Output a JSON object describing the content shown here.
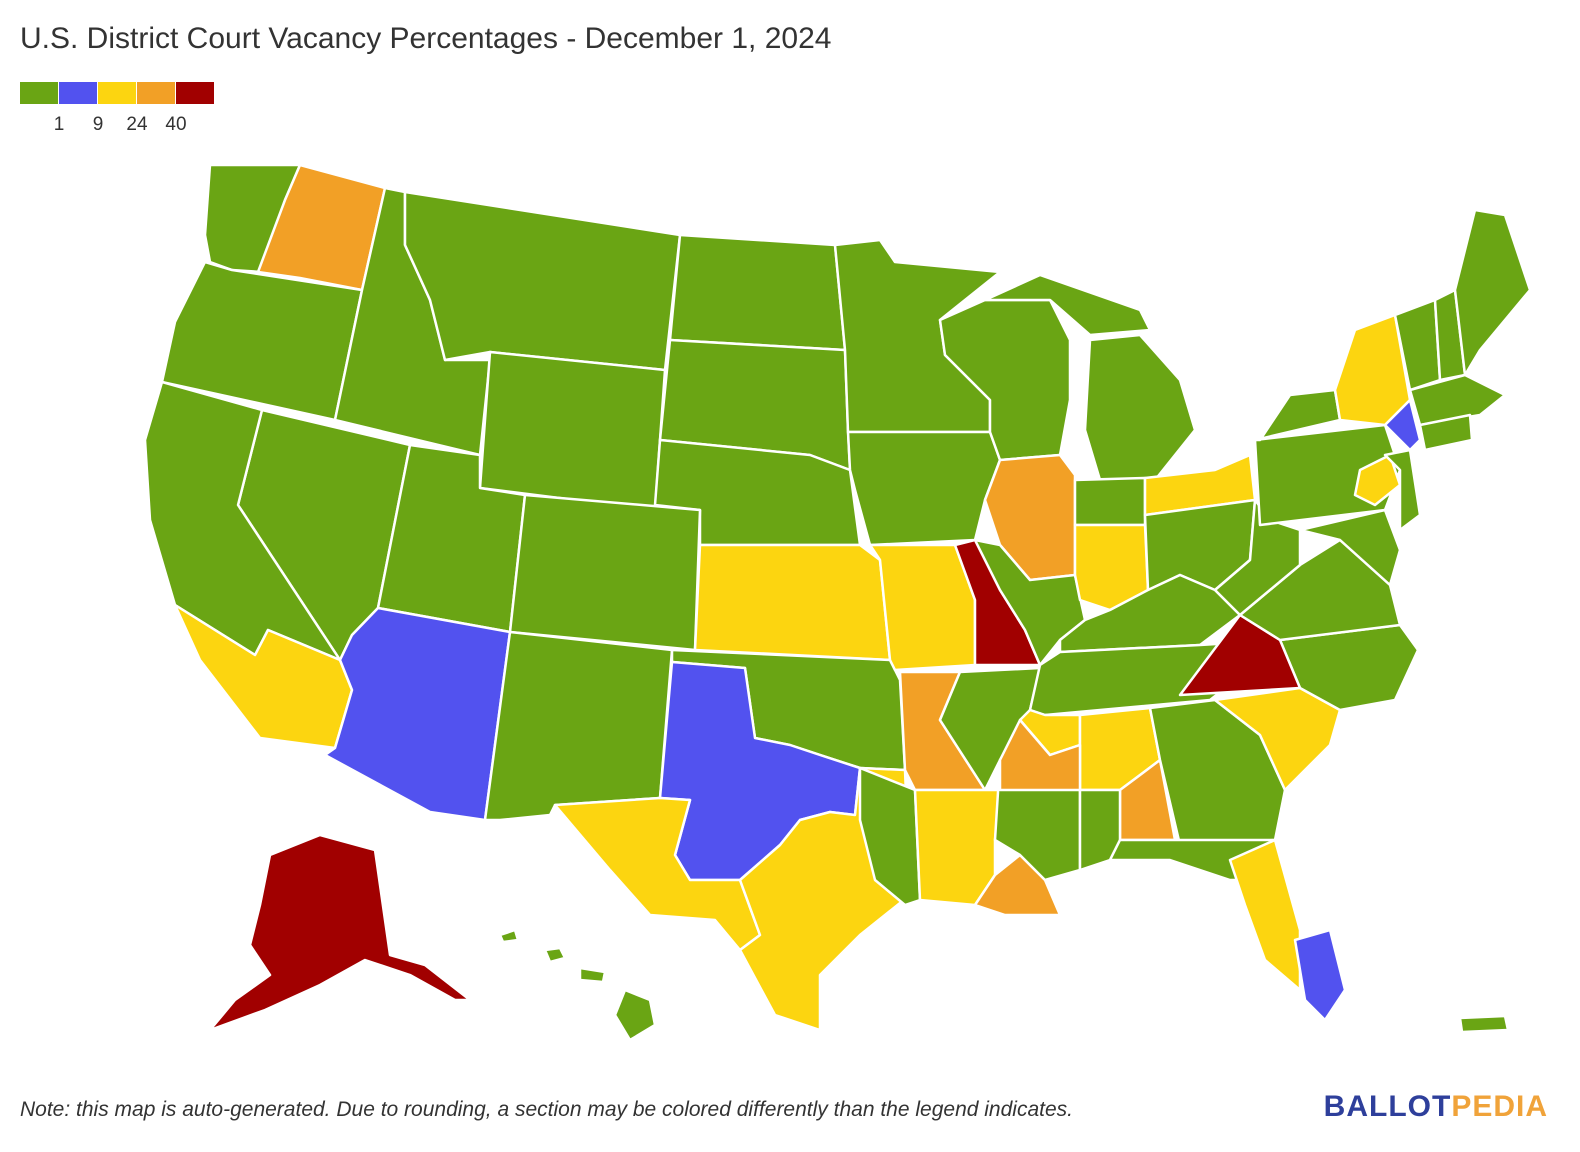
{
  "title": "U.S. District Court Vacancy Percentages - December 1, 2024",
  "legend": {
    "colors": [
      "#6aa514",
      "#5252ef",
      "#fcd510",
      "#f2a026",
      "#a10000"
    ],
    "ticks": [
      "1",
      "9",
      "24",
      "40"
    ]
  },
  "note": "Note: this map is auto-generated. Due to rounding, a section may be colored differently than the legend indicates.",
  "brand": {
    "part1": "BALLOT",
    "part2": "PEDIA"
  },
  "colors": {
    "green": "#6aa514",
    "blue": "#5252ef",
    "yellow": "#fcd510",
    "orange": "#f2a026",
    "red": "#a10000",
    "border": "#ffffff"
  }
}
